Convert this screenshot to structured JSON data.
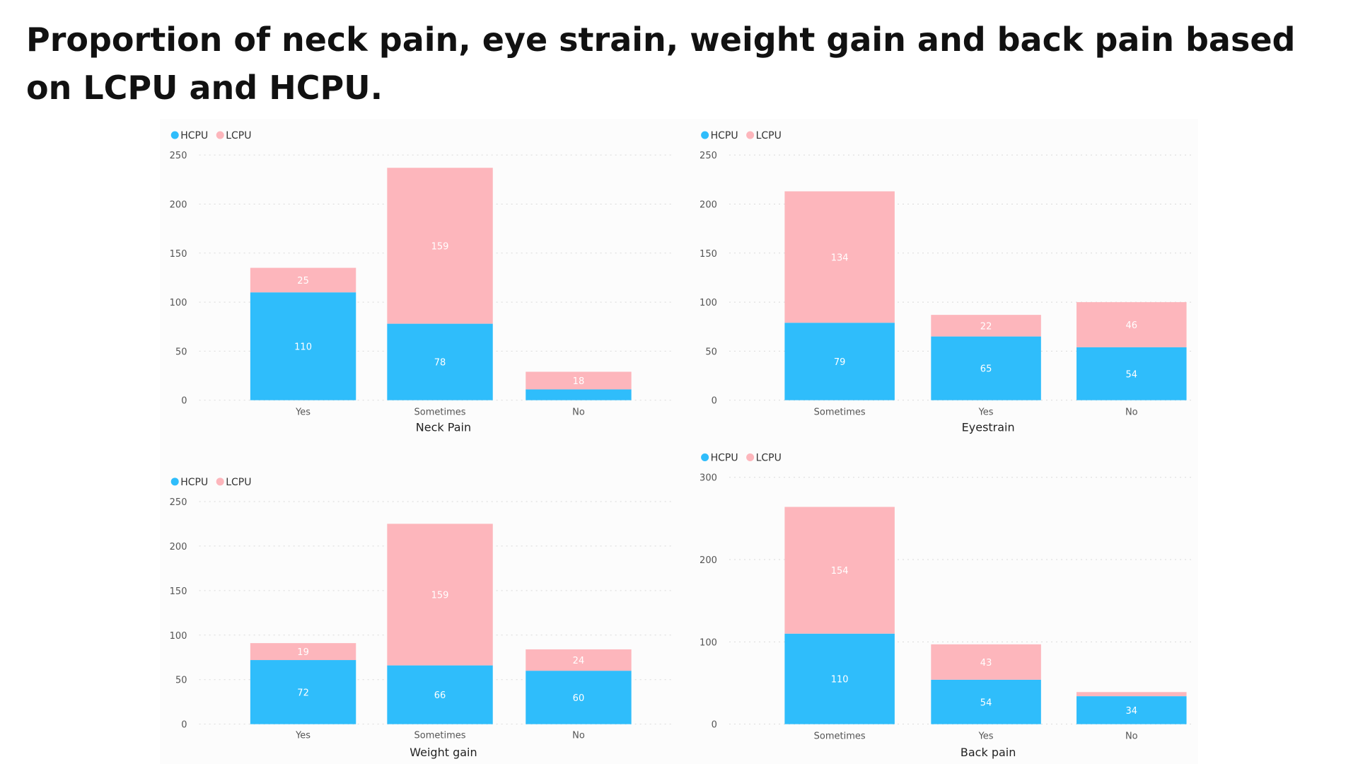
{
  "title": "Proportion of neck pain, eye strain, weight gain and back pain based on LCPU and HCPU.",
  "colors": {
    "HCPU": "#2fbdfb",
    "LCPU": "#fdb6bc",
    "grid": "#d9d9d9",
    "axis_text": "#555555",
    "label_text": "#ffffff",
    "xtitle": "#222222"
  },
  "chart_data": [
    {
      "type": "bar",
      "stacked": true,
      "title": "",
      "xlabel": "Neck Pain",
      "ylabel": "",
      "legend": [
        "HCPU",
        "LCPU"
      ],
      "legend_position": "top-left",
      "categories": [
        "Yes",
        "Sometimes",
        "No"
      ],
      "series": [
        {
          "name": "HCPU",
          "values": [
            110,
            78,
            11
          ],
          "labels": [
            "110",
            "78",
            ""
          ]
        },
        {
          "name": "LCPU",
          "values": [
            25,
            159,
            18
          ],
          "labels": [
            "25",
            "159",
            "18"
          ]
        }
      ],
      "ylim": [
        0,
        250
      ],
      "yticks": [
        0,
        50,
        100,
        150,
        200,
        250
      ],
      "grid": true
    },
    {
      "type": "bar",
      "stacked": true,
      "title": "",
      "xlabel": "Eyestrain",
      "ylabel": "",
      "legend": [
        "HCPU",
        "LCPU"
      ],
      "legend_position": "top-left",
      "categories": [
        "Sometimes",
        "Yes",
        "No"
      ],
      "series": [
        {
          "name": "HCPU",
          "values": [
            79,
            65,
            54
          ],
          "labels": [
            "79",
            "65",
            "54"
          ]
        },
        {
          "name": "LCPU",
          "values": [
            134,
            22,
            46
          ],
          "labels": [
            "134",
            "22",
            "46"
          ]
        }
      ],
      "ylim": [
        0,
        250
      ],
      "yticks": [
        0,
        50,
        100,
        150,
        200,
        250
      ],
      "grid": true
    },
    {
      "type": "bar",
      "stacked": true,
      "title": "",
      "xlabel": "Weight gain",
      "ylabel": "",
      "legend": [
        "HCPU",
        "LCPU"
      ],
      "legend_position": "top-left",
      "categories": [
        "Yes",
        "Sometimes",
        "No"
      ],
      "series": [
        {
          "name": "HCPU",
          "values": [
            72,
            66,
            60
          ],
          "labels": [
            "72",
            "66",
            "60"
          ]
        },
        {
          "name": "LCPU",
          "values": [
            19,
            159,
            24
          ],
          "labels": [
            "19",
            "159",
            "24"
          ]
        }
      ],
      "ylim": [
        0,
        250
      ],
      "yticks": [
        0,
        50,
        100,
        150,
        200,
        250
      ],
      "grid": true
    },
    {
      "type": "bar",
      "stacked": true,
      "title": "",
      "xlabel": "Back pain",
      "ylabel": "",
      "legend": [
        "HCPU",
        "LCPU"
      ],
      "legend_position": "top-left",
      "categories": [
        "Sometimes",
        "Yes",
        "No"
      ],
      "series": [
        {
          "name": "HCPU",
          "values": [
            110,
            54,
            34
          ],
          "labels": [
            "110",
            "54",
            "34"
          ]
        },
        {
          "name": "LCPU",
          "values": [
            154,
            43,
            5
          ],
          "labels": [
            "154",
            "43",
            ""
          ]
        }
      ],
      "ylim": [
        0,
        300
      ],
      "yticks": [
        0,
        100,
        200,
        300
      ],
      "grid": true
    }
  ]
}
